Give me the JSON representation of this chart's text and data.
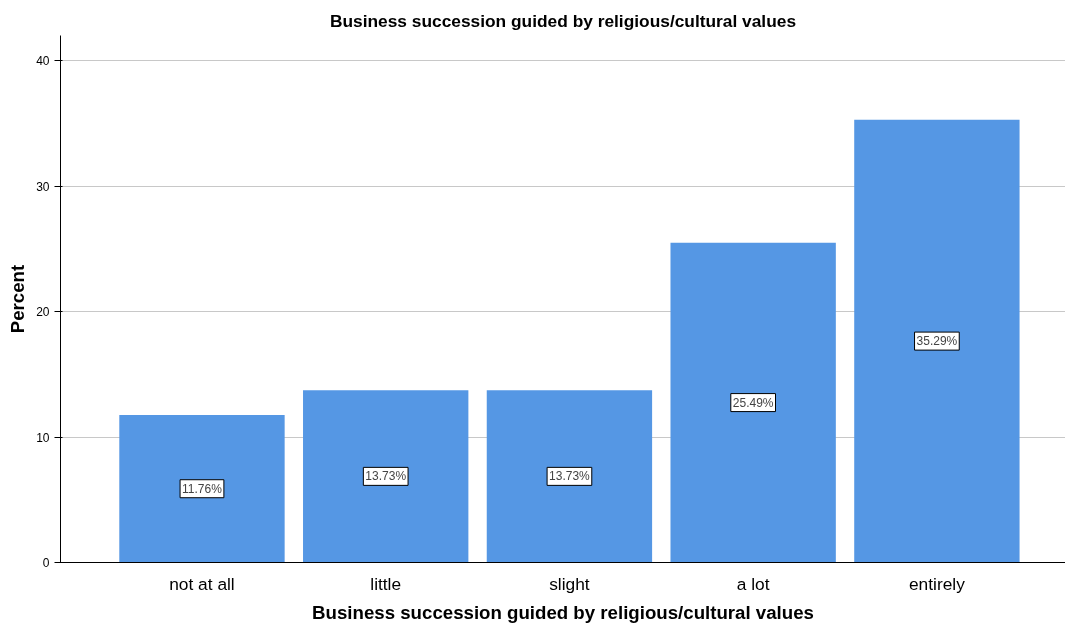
{
  "chart_data": {
    "type": "bar",
    "title": "Business succession guided by religious/cultural values",
    "xlabel": "Business succession guided by religious/cultural values",
    "ylabel": "Percent",
    "categories": [
      "not at all",
      "little",
      "slight",
      "a lot",
      "entirely"
    ],
    "values": [
      11.76,
      13.73,
      13.73,
      25.49,
      35.29
    ],
    "value_labels": [
      "11.76%",
      "13.73%",
      "13.73%",
      "25.49%",
      "35.29%"
    ],
    "color": "#5597e4",
    "ylim": [
      0,
      42
    ],
    "yticks": [
      0,
      10,
      20,
      30,
      40
    ],
    "grid": "y"
  }
}
